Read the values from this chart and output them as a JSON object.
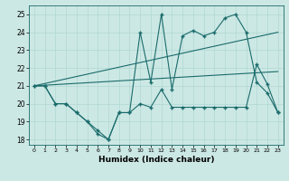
{
  "xlabel": "Humidex (Indice chaleur)",
  "bg_color": "#cce8e4",
  "line_color": "#1a6b6b",
  "grid_color": "#b0d8d4",
  "xlim": [
    -0.5,
    23.5
  ],
  "ylim": [
    17.7,
    25.5
  ],
  "xticks": [
    0,
    1,
    2,
    3,
    4,
    5,
    6,
    7,
    8,
    9,
    10,
    11,
    12,
    13,
    14,
    15,
    16,
    17,
    18,
    19,
    20,
    21,
    22,
    23
  ],
  "yticks": [
    18,
    19,
    20,
    21,
    22,
    23,
    24,
    25
  ],
  "line1_x": [
    0,
    1,
    2,
    3,
    4,
    5,
    6,
    7,
    8,
    9,
    10,
    11,
    12,
    13,
    14,
    15,
    16,
    17,
    18,
    19,
    20,
    21,
    22,
    23
  ],
  "line1_y": [
    21,
    21,
    20,
    20,
    19.5,
    19,
    18.5,
    18,
    19.5,
    19.5,
    24,
    21.2,
    25,
    20.8,
    23.8,
    24.1,
    23.8,
    24,
    24.8,
    25,
    24,
    21.2,
    20.6,
    19.5
  ],
  "line2_x": [
    0,
    1,
    2,
    3,
    4,
    5,
    6,
    7,
    8,
    9,
    10,
    11,
    12,
    13,
    14,
    15,
    16,
    17,
    18,
    19,
    20,
    21,
    22,
    23
  ],
  "line2_y": [
    21,
    21,
    20,
    20,
    19.5,
    19,
    18.3,
    18,
    19.5,
    19.5,
    20,
    19.8,
    20.8,
    19.8,
    19.8,
    19.8,
    19.8,
    19.8,
    19.8,
    19.8,
    19.8,
    22.2,
    21.1,
    19.5
  ],
  "line3_x": [
    0,
    23
  ],
  "line3_y": [
    21.0,
    21.8
  ],
  "line4_x": [
    0,
    23
  ],
  "line4_y": [
    21.0,
    24.0
  ]
}
